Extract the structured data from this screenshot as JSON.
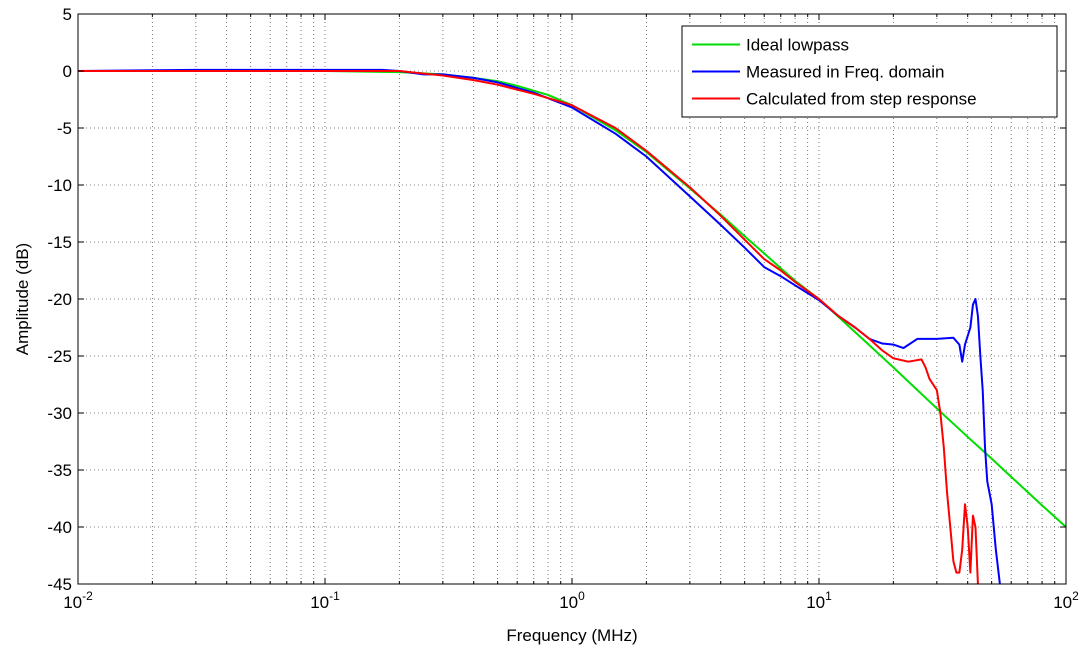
{
  "chart_data": {
    "type": "line",
    "xlabel": "Frequency (MHz)",
    "ylabel": "Amplitude (dB)",
    "xscale": "log",
    "xlim": [
      0.01,
      100
    ],
    "ylim": [
      -45,
      5
    ],
    "grid": true,
    "legend_position": "top-right",
    "x_ticks": [
      {
        "base": "10",
        "exp": "-2"
      },
      {
        "base": "10",
        "exp": "-1"
      },
      {
        "base": "10",
        "exp": "0"
      },
      {
        "base": "10",
        "exp": "1"
      },
      {
        "base": "10",
        "exp": "2"
      }
    ],
    "y_ticks": [
      "5",
      "0",
      "-5",
      "-10",
      "-15",
      "-20",
      "-25",
      "-30",
      "-35",
      "-40",
      "-45"
    ],
    "series": [
      {
        "name": "Ideal lowpass",
        "color": "#00dd00",
        "points": [
          [
            0.01,
            0
          ],
          [
            0.05,
            0
          ],
          [
            0.1,
            0
          ],
          [
            0.2,
            -0.1
          ],
          [
            0.3,
            -0.3
          ],
          [
            0.4,
            -0.6
          ],
          [
            0.5,
            -0.9
          ],
          [
            0.6,
            -1.3
          ],
          [
            0.8,
            -2.1
          ],
          [
            1,
            -3
          ],
          [
            1.5,
            -5.2
          ],
          [
            2,
            -7.1
          ],
          [
            3,
            -10.3
          ],
          [
            4,
            -12.6
          ],
          [
            5,
            -14.5
          ],
          [
            6,
            -16
          ],
          [
            7,
            -17.3
          ],
          [
            8,
            -18.4
          ],
          [
            10,
            -20
          ],
          [
            15,
            -23.5
          ],
          [
            20,
            -26
          ],
          [
            30,
            -29.6
          ],
          [
            40,
            -32.1
          ],
          [
            50,
            -34
          ],
          [
            60,
            -35.6
          ],
          [
            80,
            -38.1
          ],
          [
            100,
            -40
          ]
        ]
      },
      {
        "name": "Measured in Freq. domain",
        "color": "#0000ff",
        "points": [
          [
            0.01,
            0
          ],
          [
            0.03,
            0.1
          ],
          [
            0.1,
            0.1
          ],
          [
            0.17,
            0.1
          ],
          [
            0.2,
            0
          ],
          [
            0.25,
            -0.3
          ],
          [
            0.3,
            -0.3
          ],
          [
            0.4,
            -0.6
          ],
          [
            0.5,
            -1
          ],
          [
            0.7,
            -1.9
          ],
          [
            1,
            -3.2
          ],
          [
            1.5,
            -5.5
          ],
          [
            2,
            -7.5
          ],
          [
            3,
            -11
          ],
          [
            4,
            -13.5
          ],
          [
            5,
            -15.5
          ],
          [
            6,
            -17.2
          ],
          [
            7,
            -18
          ],
          [
            8,
            -18.8
          ],
          [
            10,
            -20.1
          ],
          [
            12,
            -21.5
          ],
          [
            14,
            -22.5
          ],
          [
            16,
            -23.5
          ],
          [
            18,
            -23.9
          ],
          [
            20,
            -24
          ],
          [
            22,
            -24.3
          ],
          [
            25,
            -23.5
          ],
          [
            30,
            -23.5
          ],
          [
            35,
            -23.4
          ],
          [
            37,
            -24
          ],
          [
            38,
            -25.5
          ],
          [
            39,
            -24
          ],
          [
            41,
            -22.5
          ],
          [
            42,
            -20.5
          ],
          [
            43,
            -20
          ],
          [
            44,
            -21.5
          ],
          [
            45,
            -25
          ],
          [
            46,
            -28
          ],
          [
            47,
            -33
          ],
          [
            48,
            -36
          ],
          [
            50,
            -38
          ],
          [
            52,
            -42
          ],
          [
            54,
            -45
          ]
        ]
      },
      {
        "name": "Calculated from step response",
        "color": "#ff0000",
        "points": [
          [
            0.01,
            0
          ],
          [
            0.05,
            0
          ],
          [
            0.1,
            0
          ],
          [
            0.2,
            0
          ],
          [
            0.3,
            -0.4
          ],
          [
            0.4,
            -0.8
          ],
          [
            0.5,
            -1.2
          ],
          [
            0.7,
            -2
          ],
          [
            1,
            -3
          ],
          [
            1.5,
            -5
          ],
          [
            2,
            -7
          ],
          [
            3,
            -10.2
          ],
          [
            4,
            -12.7
          ],
          [
            5,
            -14.8
          ],
          [
            6,
            -16.5
          ],
          [
            7,
            -17.5
          ],
          [
            8,
            -18.5
          ],
          [
            10,
            -20
          ],
          [
            12,
            -21.5
          ],
          [
            14,
            -22.5
          ],
          [
            16,
            -23.5
          ],
          [
            18,
            -24.5
          ],
          [
            20,
            -25.2
          ],
          [
            23,
            -25.5
          ],
          [
            26,
            -25.3
          ],
          [
            27,
            -26
          ],
          [
            28,
            -27
          ],
          [
            30,
            -28
          ],
          [
            31,
            -30
          ],
          [
            32,
            -33
          ],
          [
            33,
            -37
          ],
          [
            34,
            -40
          ],
          [
            35,
            -43
          ],
          [
            36,
            -44
          ],
          [
            37,
            -44
          ],
          [
            38,
            -42
          ],
          [
            39,
            -38
          ],
          [
            40,
            -40
          ],
          [
            41,
            -44
          ],
          [
            42,
            -39
          ],
          [
            43,
            -40
          ],
          [
            44,
            -45
          ]
        ]
      }
    ]
  }
}
